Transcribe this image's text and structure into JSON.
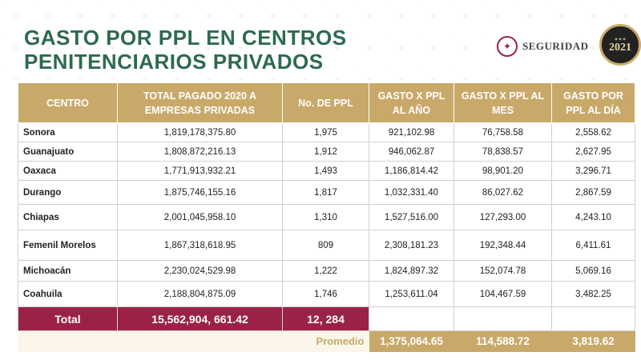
{
  "header": {
    "title_line1": "GASTO POR PPL EN CENTROS",
    "title_line2": "PENITENCIARIOS PRIVADOS",
    "logo_text": "SEGURIDAD",
    "seal_year": "2021"
  },
  "table": {
    "headers": [
      "CENTRO",
      "TOTAL PAGADO 2020 A EMPRESAS PRIVADAS",
      "No. DE PPL",
      "GASTO X PPL AL AÑO",
      "GASTO X PPL AL MES",
      "GASTO POR PPL AL DÍA"
    ],
    "rows": [
      {
        "centro": "Sonora",
        "total": "1,819,178,375.80",
        "ppl": "1,975",
        "anio": "921,102.98",
        "mes": "76,758.58",
        "dia": "2,558.62"
      },
      {
        "centro": "Guanajuato",
        "total": "1,808,872,216.13",
        "ppl": "1,912",
        "anio": "946,062.87",
        "mes": "78,838.57",
        "dia": "2,627.95"
      },
      {
        "centro": "Oaxaca",
        "total": "1,771,913,932.21",
        "ppl": "1,493",
        "anio": "1,186,814.42",
        "mes": "98,901.20",
        "dia": "3,296.71"
      },
      {
        "centro": "Durango",
        "total": "1,875,746,155.16",
        "ppl": "1,817",
        "anio": "1,032,331.40",
        "mes": "86,027.62",
        "dia": "2,867.59"
      },
      {
        "centro": "Chiapas",
        "total": "2,001,045,958.10",
        "ppl": "1,310",
        "anio": "1,527,516.00",
        "mes": "127,293.00",
        "dia": "4,243.10"
      },
      {
        "centro": "Femenil Morelos",
        "total": "1,867,318,618.95",
        "ppl": "809",
        "anio": "2,308,181.23",
        "mes": "192,348.44",
        "dia": "6,411.61"
      },
      {
        "centro": "Michoacán",
        "total": "2,230,024,529.98",
        "ppl": "1,222",
        "anio": "1,824,897.32",
        "mes": "152,074.78",
        "dia": "5,069.16"
      },
      {
        "centro": "Coahuila",
        "total": "2,188,804,875.09",
        "ppl": "1,746",
        "anio": "1,253,611.04",
        "mes": "104,467.59",
        "dia": "3,482.25"
      }
    ],
    "total": {
      "label": "Total",
      "total": "15,562,904, 661.42",
      "ppl": "12, 284"
    },
    "promedio": {
      "label": "Promedio",
      "anio": "1,375,064.65",
      "mes": "114,588.72",
      "dia": "3,819.62"
    }
  },
  "colors": {
    "title": "#2d6a4f",
    "header_gold": "#c9a96a",
    "total_maroon": "#9b2247"
  }
}
